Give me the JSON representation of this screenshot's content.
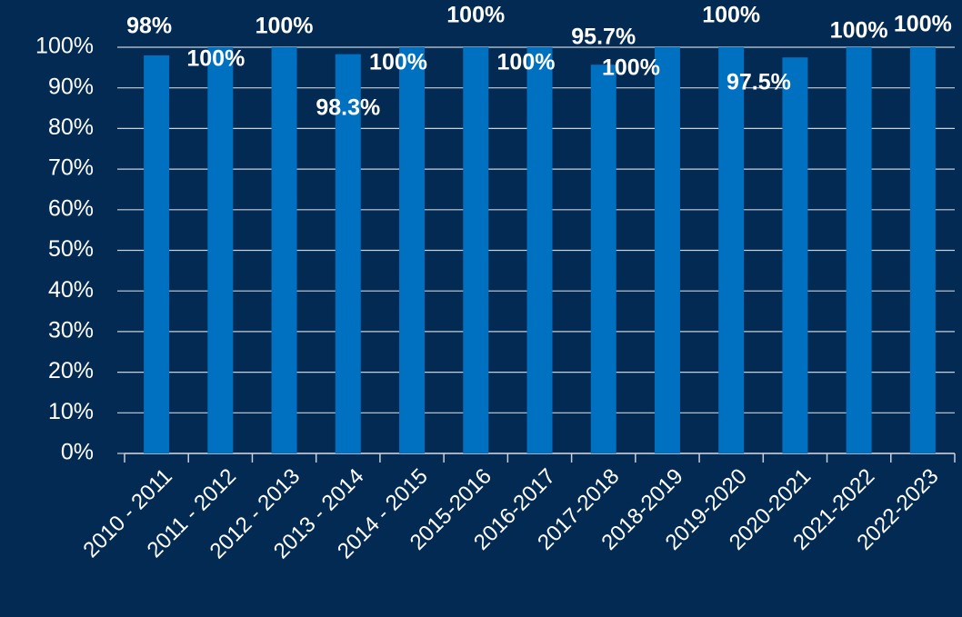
{
  "chart_data": {
    "type": "bar",
    "categories": [
      "2010 - 2011",
      "2011 - 2012",
      "2012 - 2013",
      "2013 - 2014",
      "2014 - 2015",
      "2015-2016",
      "2016-2017",
      "2017-2018",
      "2018-2019",
      "2019-2020",
      "2020-2021",
      "2021-2022",
      "2022-2023"
    ],
    "values": [
      98,
      100,
      100,
      98.3,
      100,
      100,
      100,
      95.7,
      100,
      100,
      97.5,
      100,
      100
    ],
    "value_labels": [
      "98%",
      "100%",
      "100%",
      "98.3%",
      "100%",
      "100%",
      "100%",
      "95.7%",
      "100%",
      "100%",
      "97.5%",
      "100%",
      "100%"
    ],
    "color": "#0070c0",
    "ylim": [
      0,
      100
    ],
    "yticks": [
      {
        "value": 0,
        "label": "0%"
      },
      {
        "value": 10,
        "label": "10%"
      },
      {
        "value": 20,
        "label": "20%"
      },
      {
        "value": 30,
        "label": "30%"
      },
      {
        "value": 40,
        "label": "40%"
      },
      {
        "value": 50,
        "label": "50%"
      },
      {
        "value": 60,
        "label": "60%"
      },
      {
        "value": 70,
        "label": "70%"
      },
      {
        "value": 80,
        "label": "80%"
      },
      {
        "value": 90,
        "label": "90%"
      },
      {
        "value": 100,
        "label": "100%"
      }
    ],
    "grid": true
  }
}
